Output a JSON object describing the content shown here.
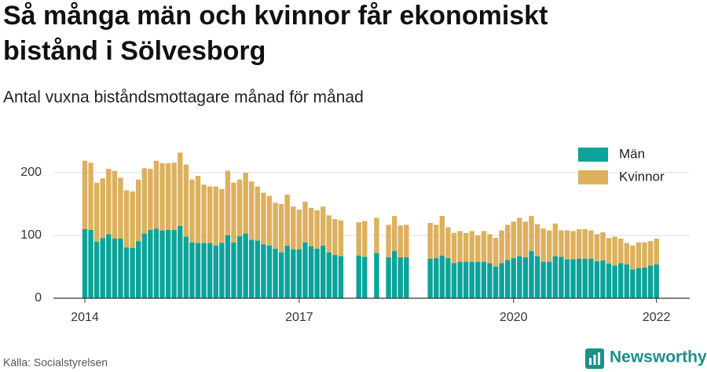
{
  "chart_data": {
    "type": "bar",
    "stacked": true,
    "title_lines": [
      "Så många män och kvinnor får ekonomiskt",
      "bistånd i Sölvesborg"
    ],
    "subtitle": "Antal vuxna biståndsmottagare månad för månad",
    "source": "Källa: Socialstyrelsen",
    "brand": "Newsworthy",
    "legend": "top-right",
    "grid": true,
    "ylim": [
      0,
      237.5
    ],
    "yticks": [
      0,
      100,
      200
    ],
    "categories": [
      "2014",
      null,
      null,
      null,
      null,
      null,
      null,
      null,
      null,
      null,
      null,
      null,
      null,
      null,
      null,
      null,
      null,
      null,
      null,
      null,
      null,
      null,
      null,
      null,
      null,
      null,
      null,
      null,
      null,
      null,
      null,
      null,
      null,
      null,
      null,
      null,
      "2017",
      null,
      null,
      null,
      null,
      null,
      null,
      null,
      null,
      null,
      null,
      null,
      null,
      null,
      null,
      null,
      null,
      null,
      null,
      null,
      null,
      null,
      null,
      null,
      null,
      null,
      null,
      null,
      null,
      null,
      null,
      null,
      null,
      null,
      null,
      null,
      "2020",
      null,
      null,
      null,
      null,
      null,
      null,
      null,
      null,
      null,
      null,
      null,
      null,
      null,
      null,
      null,
      null,
      null,
      null,
      null,
      null,
      null,
      null,
      null,
      "2022"
    ],
    "series": [
      {
        "name": "Män",
        "color": "#0ba39a",
        "values": [
          110,
          109,
          90,
          96,
          102,
          95,
          95,
          81,
          80,
          91,
          103,
          109,
          111,
          108,
          109,
          109,
          115,
          98,
          89,
          88,
          88,
          88,
          84,
          88,
          100,
          89,
          99,
          103,
          93,
          92,
          86,
          84,
          79,
          73,
          84,
          78,
          78,
          89,
          83,
          79,
          84,
          73,
          69,
          67,
          null,
          null,
          68,
          66,
          null,
          72,
          null,
          65,
          75,
          65,
          65,
          null,
          null,
          null,
          63,
          64,
          68,
          64,
          56,
          58,
          58,
          58,
          58,
          58,
          56,
          50,
          56,
          61,
          64,
          67,
          65,
          75,
          67,
          58,
          58,
          67,
          66,
          62,
          62,
          63,
          63,
          63,
          59,
          60,
          55,
          52,
          56,
          54,
          46,
          48,
          49,
          52,
          54
        ]
      },
      {
        "name": "Kvinnor",
        "color": "#ddb05e",
        "values": [
          109,
          107,
          94,
          95,
          104,
          108,
          97,
          91,
          90,
          98,
          104,
          97,
          108,
          107,
          106,
          107,
          117,
          115,
          100,
          107,
          93,
          90,
          94,
          86,
          103,
          95,
          90,
          97,
          93,
          86,
          82,
          79,
          73,
          77,
          81,
          68,
          63,
          65,
          61,
          61,
          62,
          59,
          57,
          57,
          null,
          null,
          53,
          57,
          null,
          56,
          null,
          52,
          56,
          51,
          52,
          null,
          null,
          null,
          57,
          53,
          63,
          49,
          48,
          49,
          46,
          49,
          42,
          49,
          46,
          46,
          52,
          56,
          58,
          61,
          57,
          56,
          51,
          53,
          50,
          52,
          42,
          46,
          45,
          47,
          47,
          45,
          43,
          45,
          41,
          46,
          39,
          34,
          38,
          41,
          40,
          39,
          41
        ]
      }
    ]
  }
}
